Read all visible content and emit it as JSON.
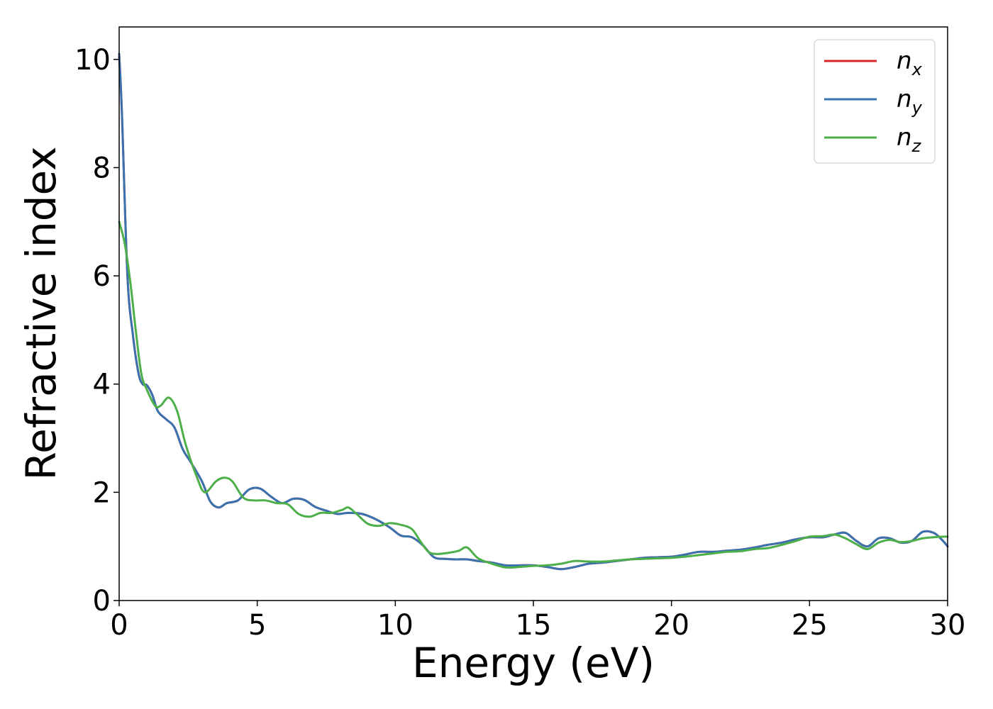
{
  "chart_data": {
    "type": "line",
    "title": "",
    "xlabel": "Energy (eV)",
    "ylabel": "Refractive index",
    "xlim": [
      0,
      30
    ],
    "ylim": [
      0,
      10.6
    ],
    "xticks": [
      0,
      5,
      10,
      15,
      20,
      25,
      30
    ],
    "yticks": [
      0,
      2,
      4,
      6,
      8,
      10
    ],
    "xtick_labels": [
      "0",
      "5",
      "10",
      "15",
      "20",
      "25",
      "30"
    ],
    "ytick_labels": [
      "0",
      "2",
      "4",
      "6",
      "8",
      "10"
    ],
    "grid": false,
    "legend_position": "top-right",
    "series": [
      {
        "name": "n_x",
        "legend_base": "n",
        "legend_sub": "x",
        "color": "#d62728",
        "x": [
          0,
          0.1,
          0.3,
          0.5,
          0.7,
          0.85,
          1.0,
          1.2,
          1.4,
          1.7,
          2.0,
          2.3,
          2.6,
          3.0,
          3.3,
          3.6,
          3.9,
          4.3,
          4.7,
          5.1,
          5.5,
          5.9,
          6.3,
          6.7,
          7.1,
          7.5,
          7.9,
          8.3,
          8.8,
          9.3,
          9.8,
          10.2,
          10.6,
          11.0,
          11.4,
          11.8,
          12.2,
          12.6,
          13.0,
          13.5,
          14.0,
          14.5,
          15.0,
          15.5,
          16.0,
          16.5,
          17.0,
          17.5,
          18.0,
          18.5,
          19.0,
          19.5,
          20.0,
          20.5,
          21.0,
          21.5,
          22.0,
          22.5,
          23.0,
          23.5,
          24.0,
          24.5,
          25.0,
          25.5,
          25.9,
          26.3,
          26.7,
          27.1,
          27.5,
          27.9,
          28.3,
          28.7,
          29.1,
          29.5,
          29.8,
          30.0
        ],
        "values": [
          10.1,
          9.0,
          6.0,
          4.9,
          4.2,
          4.0,
          3.98,
          3.8,
          3.5,
          3.35,
          3.2,
          2.8,
          2.55,
          2.2,
          1.83,
          1.72,
          1.8,
          1.85,
          2.05,
          2.07,
          1.92,
          1.8,
          1.88,
          1.86,
          1.73,
          1.66,
          1.6,
          1.62,
          1.6,
          1.5,
          1.35,
          1.2,
          1.17,
          1.02,
          0.8,
          0.77,
          0.76,
          0.76,
          0.73,
          0.7,
          0.65,
          0.65,
          0.65,
          0.62,
          0.58,
          0.62,
          0.68,
          0.7,
          0.73,
          0.76,
          0.79,
          0.8,
          0.81,
          0.85,
          0.9,
          0.9,
          0.92,
          0.94,
          0.98,
          1.03,
          1.07,
          1.13,
          1.17,
          1.17,
          1.22,
          1.25,
          1.1,
          1.0,
          1.15,
          1.15,
          1.07,
          1.1,
          1.27,
          1.25,
          1.12,
          1.0
        ]
      },
      {
        "name": "n_y",
        "legend_base": "n",
        "legend_sub": "y",
        "color": "#3a72b0",
        "x": [
          0,
          0.1,
          0.3,
          0.5,
          0.7,
          0.85,
          1.0,
          1.2,
          1.4,
          1.7,
          2.0,
          2.3,
          2.6,
          3.0,
          3.3,
          3.6,
          3.9,
          4.3,
          4.7,
          5.1,
          5.5,
          5.9,
          6.3,
          6.7,
          7.1,
          7.5,
          7.9,
          8.3,
          8.8,
          9.3,
          9.8,
          10.2,
          10.6,
          11.0,
          11.4,
          11.8,
          12.2,
          12.6,
          13.0,
          13.5,
          14.0,
          14.5,
          15.0,
          15.5,
          16.0,
          16.5,
          17.0,
          17.5,
          18.0,
          18.5,
          19.0,
          19.5,
          20.0,
          20.5,
          21.0,
          21.5,
          22.0,
          22.5,
          23.0,
          23.5,
          24.0,
          24.5,
          25.0,
          25.5,
          25.9,
          26.3,
          26.7,
          27.1,
          27.5,
          27.9,
          28.3,
          28.7,
          29.1,
          29.5,
          29.8,
          30.0
        ],
        "values": [
          10.1,
          9.0,
          6.0,
          4.9,
          4.2,
          4.0,
          3.98,
          3.8,
          3.5,
          3.35,
          3.2,
          2.8,
          2.55,
          2.2,
          1.83,
          1.72,
          1.8,
          1.85,
          2.05,
          2.07,
          1.92,
          1.8,
          1.88,
          1.86,
          1.73,
          1.66,
          1.6,
          1.62,
          1.6,
          1.5,
          1.35,
          1.2,
          1.17,
          1.02,
          0.8,
          0.77,
          0.76,
          0.76,
          0.73,
          0.7,
          0.65,
          0.65,
          0.65,
          0.62,
          0.58,
          0.62,
          0.68,
          0.7,
          0.73,
          0.76,
          0.79,
          0.8,
          0.81,
          0.85,
          0.9,
          0.9,
          0.92,
          0.94,
          0.98,
          1.03,
          1.07,
          1.13,
          1.17,
          1.17,
          1.22,
          1.25,
          1.1,
          1.0,
          1.15,
          1.15,
          1.07,
          1.1,
          1.27,
          1.25,
          1.12,
          1.0
        ]
      },
      {
        "name": "n_z",
        "legend_base": "n",
        "legend_sub": "z",
        "color": "#4daf4a",
        "x": [
          0,
          0.2,
          0.4,
          0.6,
          0.8,
          1.0,
          1.3,
          1.5,
          1.8,
          2.1,
          2.4,
          2.8,
          3.1,
          3.5,
          3.8,
          4.1,
          4.5,
          4.9,
          5.3,
          5.7,
          6.1,
          6.5,
          6.9,
          7.3,
          7.7,
          8.1,
          8.3,
          8.6,
          9.0,
          9.4,
          9.8,
          10.2,
          10.6,
          10.9,
          11.2,
          11.5,
          11.9,
          12.3,
          12.6,
          13.0,
          13.5,
          14.0,
          14.5,
          15.0,
          15.5,
          16.0,
          16.5,
          17.0,
          17.5,
          18.0,
          18.5,
          19.0,
          19.5,
          20.0,
          20.5,
          21.0,
          21.5,
          22.0,
          22.5,
          23.0,
          23.5,
          24.0,
          24.5,
          25.0,
          25.5,
          25.9,
          26.3,
          26.7,
          27.1,
          27.5,
          27.9,
          28.3,
          28.7,
          29.1,
          29.5,
          29.8,
          30.0
        ],
        "values": [
          7.0,
          6.6,
          5.9,
          5.0,
          4.2,
          3.9,
          3.6,
          3.6,
          3.75,
          3.5,
          2.9,
          2.3,
          2.0,
          2.2,
          2.27,
          2.2,
          1.9,
          1.85,
          1.85,
          1.8,
          1.78,
          1.6,
          1.55,
          1.62,
          1.62,
          1.68,
          1.72,
          1.6,
          1.42,
          1.38,
          1.43,
          1.4,
          1.32,
          1.1,
          0.9,
          0.86,
          0.88,
          0.92,
          0.98,
          0.78,
          0.68,
          0.61,
          0.62,
          0.64,
          0.65,
          0.68,
          0.73,
          0.72,
          0.72,
          0.74,
          0.76,
          0.77,
          0.78,
          0.79,
          0.81,
          0.84,
          0.87,
          0.9,
          0.91,
          0.95,
          0.97,
          1.03,
          1.1,
          1.18,
          1.19,
          1.22,
          1.15,
          1.04,
          0.95,
          1.07,
          1.12,
          1.08,
          1.1,
          1.15,
          1.17,
          1.18,
          1.18
        ]
      }
    ]
  }
}
